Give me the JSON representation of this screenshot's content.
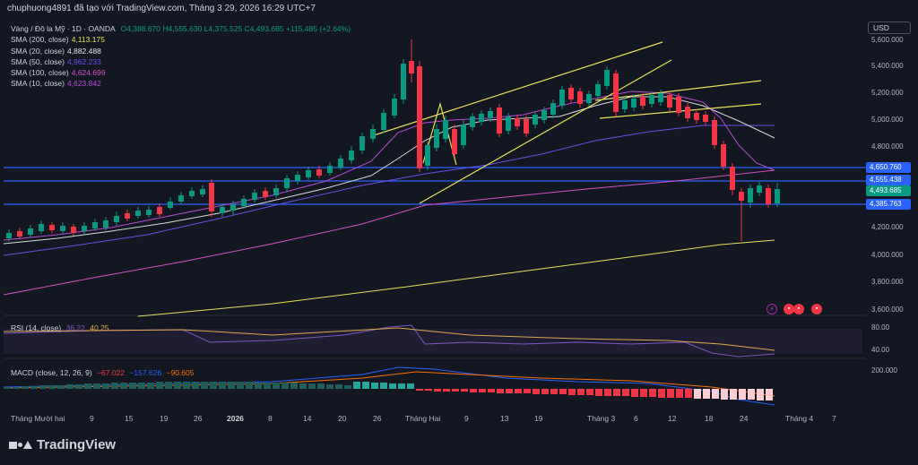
{
  "header": {
    "text": "chuphuong4891 đã tạo với TradingView.com, Tháng 3 29, 2026 16:29 UTC+7"
  },
  "symbol": {
    "name": "Vàng / Đô la Mỹ · 1D · OANDA",
    "ohlc": "O4,388.670 H4,555.630 L4,375.525 C4,493.685 +115.485 (+2.64%)"
  },
  "legend": [
    {
      "label": "SMA (200, close)",
      "value": "4,113.175",
      "color": "#e8e05a"
    },
    {
      "label": "SMA (20, close)",
      "value": "4,882.488",
      "color": "#e6e6e6"
    },
    {
      "label": "SMA (50, close)",
      "value": "4,962.233",
      "color": "#6c4ee8"
    },
    {
      "label": "SMA (100, close)",
      "value": "4,624.699",
      "color": "#d64fc4"
    },
    {
      "label": "SMA (10, close)",
      "value": "4,623.842",
      "color": "#b84ad6"
    }
  ],
  "currency": "USD",
  "price_ticks": [
    "5,600.000",
    "5,400.000",
    "5,200.000",
    "5,000.000",
    "4,800.000",
    "4,200.000",
    "4,000.000",
    "3,800.000",
    "3,600.000"
  ],
  "price_tags": [
    {
      "text": "4,650.760",
      "color": "#2962ff"
    },
    {
      "text": "4,555.438",
      "color": "#2962ff"
    },
    {
      "text": "4,493.685",
      "color": "#089981"
    },
    {
      "text": "4,385.763",
      "color": "#2962ff"
    }
  ],
  "rsi": {
    "label": "RSI (14, close)",
    "v1": "36.22",
    "v2": "40.25",
    "ticks": [
      "80.00",
      "40.00"
    ]
  },
  "macd": {
    "label": "MACD (close, 12, 26, 9)",
    "v1": "−67.022",
    "v2": "−157.626",
    "v3": "−90.605",
    "ticks": [
      "200.000"
    ]
  },
  "time_labels": [
    "Tháng Mười hai",
    "9",
    "15",
    "19",
    "26",
    "2026",
    "8",
    "14",
    "20",
    "26",
    "Tháng Hai",
    "9",
    "13",
    "19",
    "Tháng 3",
    "6",
    "12",
    "18",
    "24",
    "Tháng 4",
    "7"
  ],
  "brand": "TradingView",
  "colors": {
    "up": "#089981",
    "down": "#f23645",
    "blue_line": "#2962ff",
    "trend_line": "#e8e05a"
  }
}
